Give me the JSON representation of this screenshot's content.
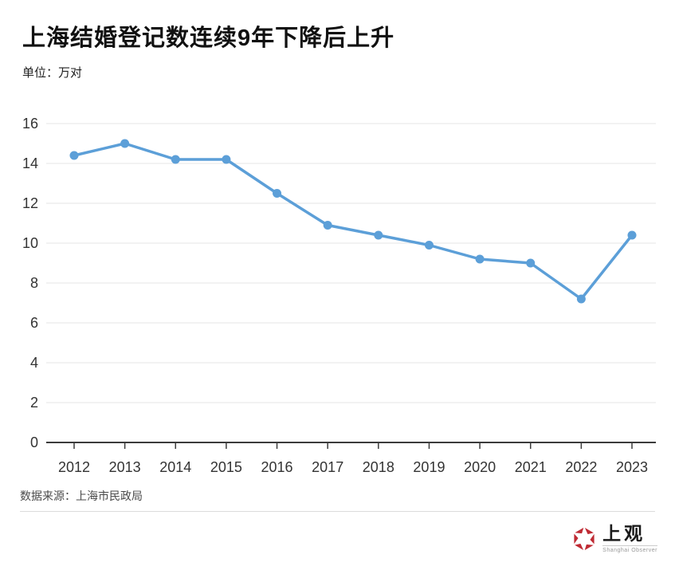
{
  "header": {
    "title": "上海结婚登记数连续9年下降后上升",
    "unit_label": "单位：万对"
  },
  "chart_data": {
    "type": "line",
    "categories": [
      "2012",
      "2013",
      "2014",
      "2015",
      "2016",
      "2017",
      "2018",
      "2019",
      "2020",
      "2021",
      "2022",
      "2023"
    ],
    "values": [
      14.4,
      15.0,
      14.2,
      14.2,
      12.5,
      10.9,
      10.4,
      9.9,
      9.2,
      9.0,
      7.2,
      10.4
    ],
    "title": "上海结婚登记数连续9年下降后上升",
    "xlabel": "",
    "ylabel": "万对",
    "ylim": [
      0,
      16
    ],
    "ytick_step": 2,
    "grid": true,
    "legend": "none",
    "line_color": "#5C9FD8",
    "marker_color": "#5C9FD8",
    "gridline_color": "#e4e4e4",
    "axis_color": "#3c3c3c",
    "tick_label_color": "#333333"
  },
  "footer": {
    "source": "数据来源：上海市民政局",
    "logo_text": "上观",
    "logo_subtext": "Shanghai Observer",
    "logo_color": "#bf2a33"
  }
}
